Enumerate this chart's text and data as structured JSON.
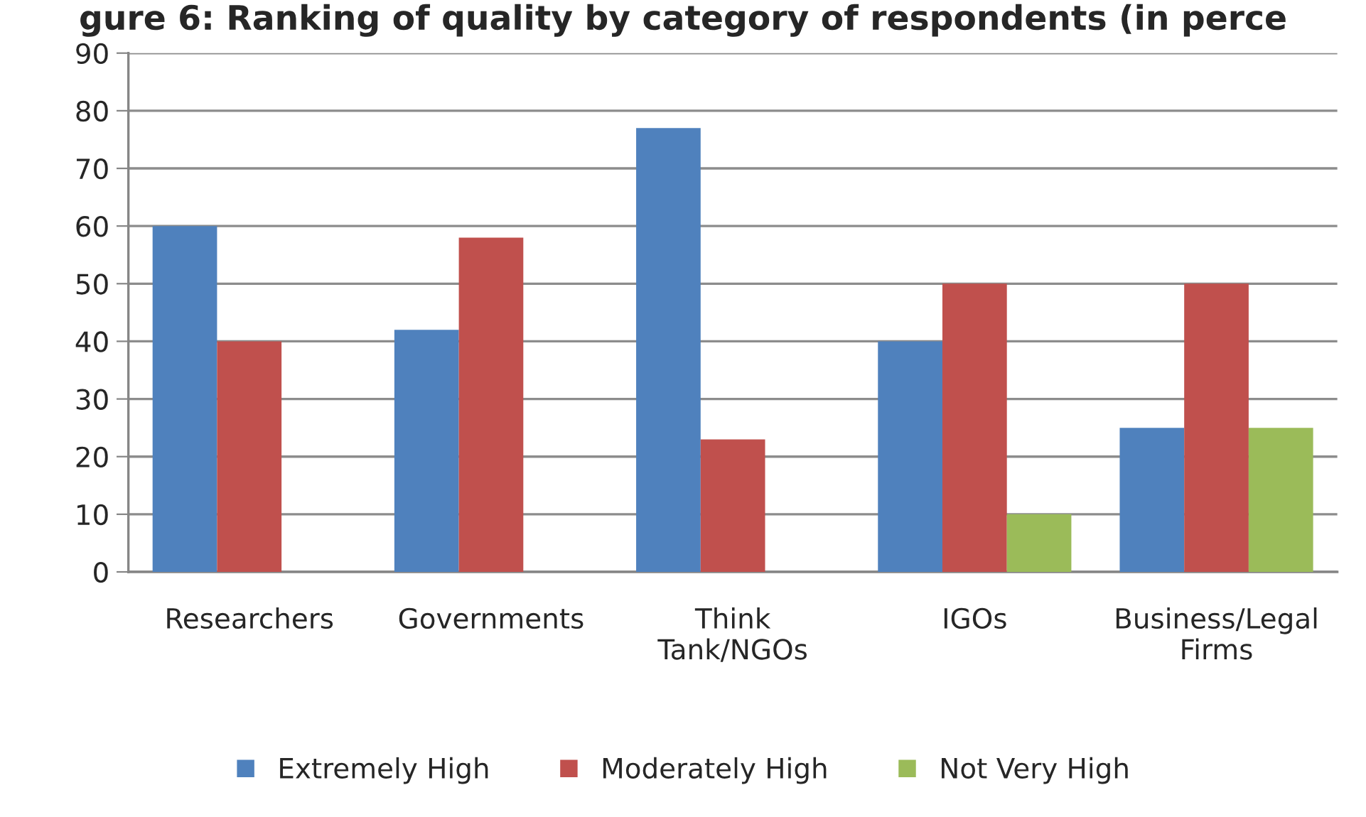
{
  "chart_data": {
    "type": "bar",
    "title": "gure 6: Ranking of quality by category of respondents (in perce",
    "categories": [
      "Researchers",
      "Governments",
      "Think Tank/NGOs",
      "IGOs",
      "Business/Legal Firms"
    ],
    "series": [
      {
        "name": "Extremely High",
        "color": "#4f81bd",
        "values": [
          60,
          42,
          77,
          40,
          25
        ]
      },
      {
        "name": "Moderately High",
        "color": "#c0504d",
        "values": [
          40,
          58,
          23,
          50,
          50
        ]
      },
      {
        "name": "Not Very High",
        "color": "#9bbb59",
        "values": [
          null,
          null,
          null,
          10,
          25
        ]
      }
    ],
    "ylim": [
      0,
      90
    ],
    "yticks": [
      0,
      10,
      20,
      30,
      40,
      50,
      60,
      70,
      80,
      90
    ],
    "grid": "y",
    "legend": "bottom"
  }
}
